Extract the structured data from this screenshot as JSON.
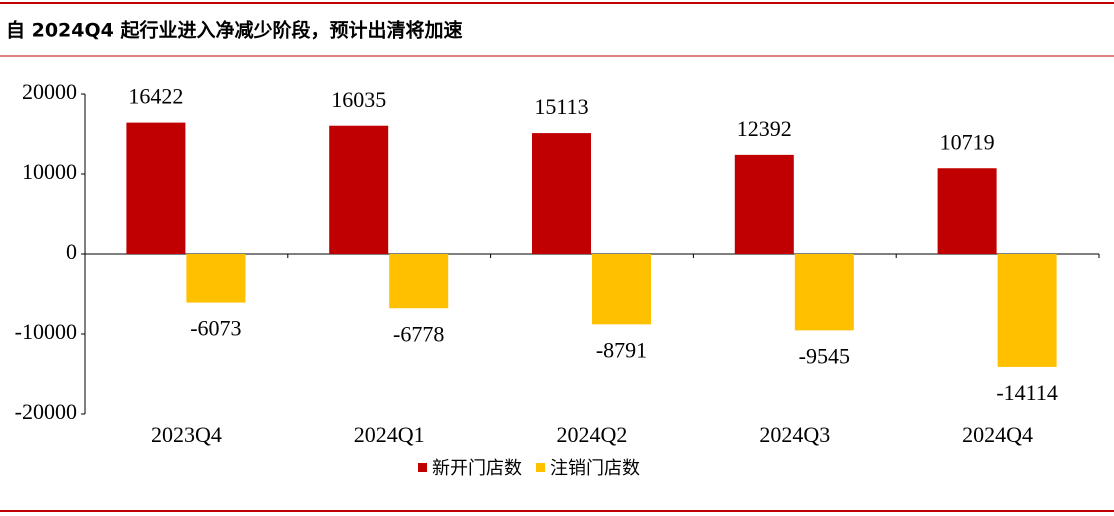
{
  "chart_data": {
    "type": "bar",
    "title": "自 2024Q4 起行业进入净减少阶段，预计出清将加速",
    "categories": [
      "2023Q4",
      "2024Q1",
      "2024Q2",
      "2024Q3",
      "2024Q4"
    ],
    "series": [
      {
        "name": "新开门店数",
        "color": "#c00000",
        "values": [
          16422,
          16035,
          15113,
          12392,
          10719
        ]
      },
      {
        "name": "注销门店数",
        "color": "#ffc000",
        "values": [
          -6073,
          -6778,
          -8791,
          -9545,
          -14114
        ]
      }
    ],
    "ylim": [
      -20000,
      20000
    ],
    "yticks": [
      -20000,
      -10000,
      0,
      10000,
      20000
    ],
    "grid": false,
    "legend": "bottom"
  }
}
